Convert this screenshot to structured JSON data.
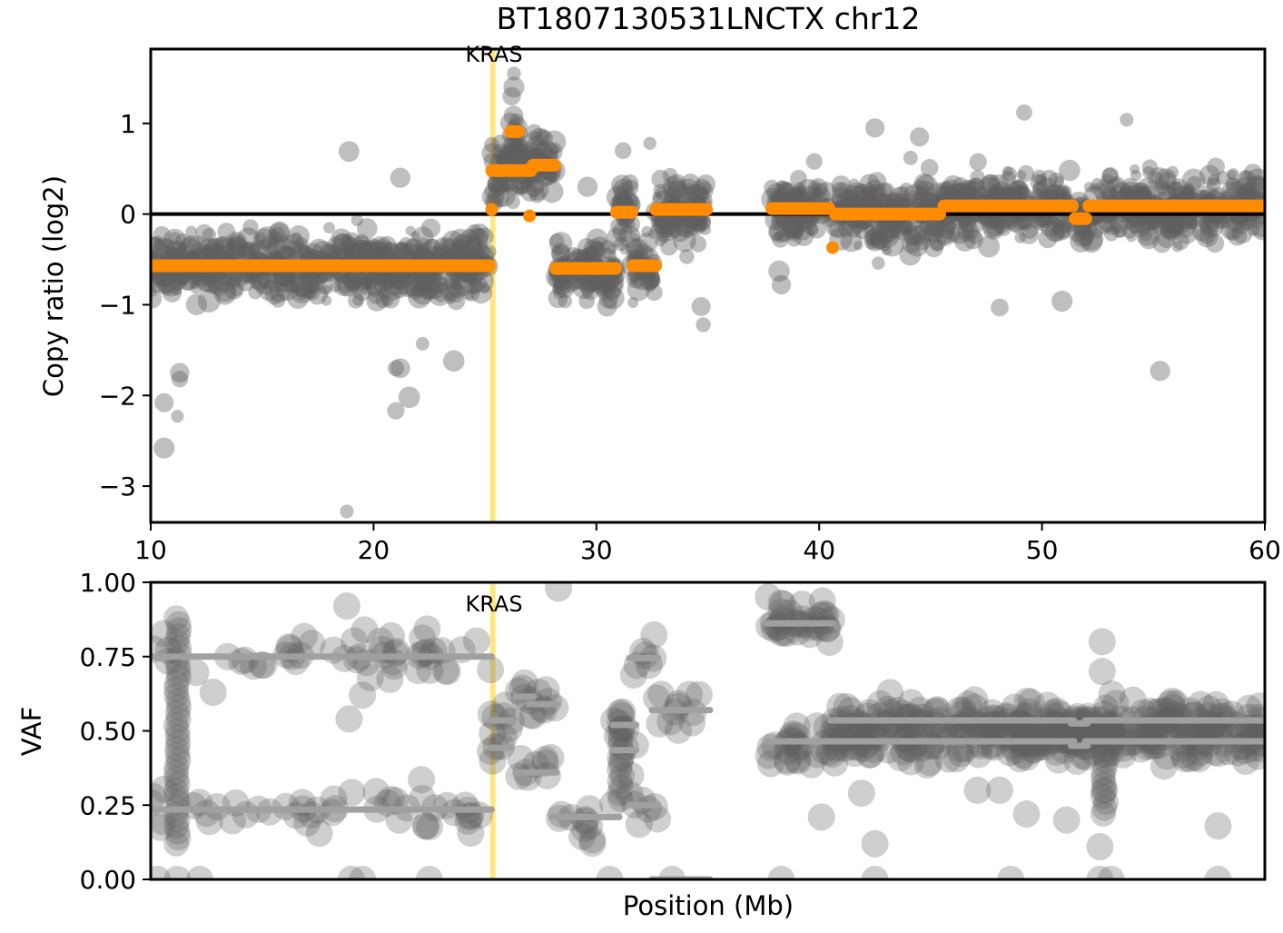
{
  "chart_data": [
    {
      "type": "scatter",
      "title": "BT1807130531LNCTX chr12",
      "xlabel": "",
      "ylabel": "Copy ratio (log2)",
      "xlim": [
        10,
        60
      ],
      "ylim": [
        -3.4,
        1.82
      ],
      "x_ticks": [
        "10",
        "20",
        "30",
        "40",
        "50",
        "60"
      ],
      "y_ticks": [
        "1",
        "0",
        "−1",
        "−2",
        "−3"
      ],
      "grid": false,
      "zero_line": 0,
      "highlight_gene": {
        "name": "KRAS",
        "position": 25.35,
        "color": "#ffe680"
      },
      "segment_color": "#ff8c00",
      "point_color": "#606060",
      "segments": [
        {
          "start": 10.0,
          "end": 25.2,
          "value": -0.57
        },
        {
          "start": 25.3,
          "end": 27.07,
          "value": 0.48
        },
        {
          "start": 26.14,
          "end": 26.5,
          "value": 0.91
        },
        {
          "start": 27.16,
          "end": 28.13,
          "value": 0.54
        },
        {
          "start": 28.17,
          "end": 30.86,
          "value": -0.6
        },
        {
          "start": 30.9,
          "end": 31.6,
          "value": 0.02
        },
        {
          "start": 31.64,
          "end": 32.66,
          "value": -0.57
        },
        {
          "start": 32.66,
          "end": 34.94,
          "value": 0.05
        },
        {
          "start": 37.87,
          "end": 40.44,
          "value": 0.06
        },
        {
          "start": 40.73,
          "end": 45.41,
          "value": 0.0
        },
        {
          "start": 45.6,
          "end": 51.36,
          "value": 0.09
        },
        {
          "start": 51.48,
          "end": 51.97,
          "value": -0.05
        },
        {
          "start": 52.1,
          "end": 60.0,
          "value": 0.09
        }
      ],
      "segment_points": [
        {
          "x": 25.3,
          "y": 0.05
        },
        {
          "x": 27.0,
          "y": -0.02
        },
        {
          "x": 40.6,
          "y": -0.37
        }
      ],
      "outlier_points": [
        [
          18.9,
          0.69
        ],
        [
          21.2,
          0.4
        ],
        [
          10.6,
          -2.08
        ],
        [
          10.6,
          -2.58
        ],
        [
          11.3,
          -1.75
        ],
        [
          11.3,
          -1.82
        ],
        [
          11.2,
          -2.23
        ],
        [
          21.0,
          -1.7
        ],
        [
          21.2,
          -1.7
        ],
        [
          21.6,
          -2.02
        ],
        [
          21.0,
          -2.17
        ],
        [
          22.2,
          -1.43
        ],
        [
          23.6,
          -1.62
        ],
        [
          18.8,
          -3.28
        ],
        [
          34.7,
          -1.02
        ],
        [
          34.8,
          -1.22
        ],
        [
          38.2,
          -0.63
        ],
        [
          38.3,
          -0.78
        ],
        [
          42.5,
          0.95
        ],
        [
          49.2,
          1.12
        ],
        [
          53.8,
          1.04
        ],
        [
          55.3,
          -1.73
        ],
        [
          48.1,
          -1.03
        ],
        [
          50.9,
          -0.96
        ],
        [
          26.3,
          1.55
        ],
        [
          26.3,
          1.4
        ],
        [
          26.2,
          1.3
        ],
        [
          29.6,
          0.3
        ],
        [
          32.4,
          0.78
        ],
        [
          31.2,
          0.7
        ],
        [
          44.1,
          0.62
        ],
        [
          44.5,
          0.85
        ]
      ]
    },
    {
      "type": "scatter",
      "xlabel": "Position (Mb)",
      "ylabel": "VAF",
      "xlim": [
        10,
        60
      ],
      "ylim": [
        0,
        1
      ],
      "y_ticks": [
        "1.00",
        "0.75",
        "0.50",
        "0.25",
        "0.00"
      ],
      "grid": false,
      "highlight_gene": {
        "name": "KRAS",
        "position": 25.35,
        "color": "#ffe680"
      },
      "segment_color": "#a0a0a0",
      "point_color": "#606060",
      "segments": [
        {
          "start": 10.0,
          "end": 25.3,
          "value": 0.75
        },
        {
          "start": 10.0,
          "end": 25.3,
          "value": 0.235
        },
        {
          "start": 25.24,
          "end": 26.18,
          "value": 0.535
        },
        {
          "start": 25.24,
          "end": 26.18,
          "value": 0.443
        },
        {
          "start": 26.38,
          "end": 27.2,
          "value": 0.615
        },
        {
          "start": 26.99,
          "end": 28.22,
          "value": 0.59
        },
        {
          "start": 26.38,
          "end": 28.22,
          "value": 0.36
        },
        {
          "start": 28.01,
          "end": 31.03,
          "value": 0.21
        },
        {
          "start": 30.74,
          "end": 31.79,
          "value": 0.52
        },
        {
          "start": 30.74,
          "end": 31.79,
          "value": 0.435
        },
        {
          "start": 31.47,
          "end": 32.78,
          "value": 0.745
        },
        {
          "start": 31.47,
          "end": 32.78,
          "value": 0.25
        },
        {
          "start": 32.49,
          "end": 35.1,
          "value": 0.57
        },
        {
          "start": 32.49,
          "end": 35.1,
          "value": 0.0
        },
        {
          "start": 37.67,
          "end": 40.64,
          "value": 0.862
        },
        {
          "start": 37.67,
          "end": 51.44,
          "value": 0.465
        },
        {
          "start": 40.5,
          "end": 51.44,
          "value": 0.535
        },
        {
          "start": 51.3,
          "end": 52.05,
          "value": 0.45
        },
        {
          "start": 51.3,
          "end": 52.05,
          "value": 0.525
        },
        {
          "start": 51.93,
          "end": 60.0,
          "value": 0.535
        },
        {
          "start": 51.93,
          "end": 60.0,
          "value": 0.465
        }
      ],
      "outlier_points": [
        [
          28.3,
          0.98
        ],
        [
          38.3,
          0.93
        ],
        [
          38.3,
          0.9
        ],
        [
          38.3,
          0.83
        ],
        [
          52.7,
          0.8
        ],
        [
          51.1,
          0.2
        ],
        [
          52.8,
          0.3
        ],
        [
          57.9,
          0.18
        ],
        [
          33.4,
          0.0
        ],
        [
          52.6,
          0.11
        ],
        [
          42.5,
          0.12
        ],
        [
          40.1,
          0.21
        ],
        [
          41.9,
          0.29
        ],
        [
          47.1,
          0.3
        ],
        [
          10.3,
          0.0
        ],
        [
          11.2,
          0.0
        ],
        [
          12.2,
          0.0
        ],
        [
          19.0,
          0.0
        ],
        [
          19.5,
          0.0
        ],
        [
          22.5,
          0.0
        ],
        [
          30.6,
          0.0
        ],
        [
          38.3,
          0.0
        ],
        [
          42.5,
          0.0
        ],
        [
          48.6,
          0.0
        ],
        [
          52.6,
          0.0
        ],
        [
          53.1,
          0.0
        ],
        [
          57.9,
          0.0
        ],
        [
          18.8,
          0.92
        ],
        [
          19.6,
          0.84
        ],
        [
          19.5,
          0.62
        ],
        [
          18.9,
          0.54
        ],
        [
          27.4,
          0.63
        ],
        [
          32.7,
          0.61
        ],
        [
          12.8,
          0.63
        ],
        [
          20.8,
          0.82
        ],
        [
          48.1,
          0.3
        ],
        [
          49.3,
          0.22
        ],
        [
          52.7,
          0.7
        ]
      ],
      "dense_columns": [
        {
          "x": 11.2,
          "from": 0.12,
          "to": 0.9
        },
        {
          "x": 31.1,
          "from": 0.27,
          "to": 0.55
        },
        {
          "x": 52.8,
          "from": 0.22,
          "to": 0.6
        }
      ]
    }
  ]
}
